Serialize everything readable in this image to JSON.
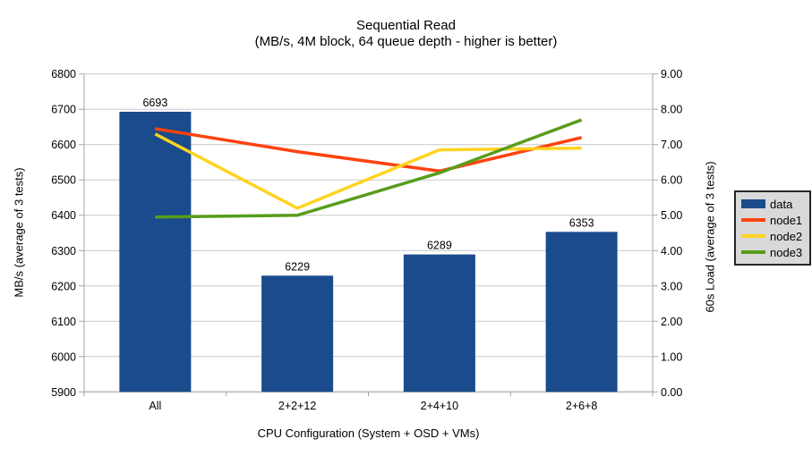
{
  "title": "Sequential Read",
  "subtitle": "(MB/s, 4M block, 64 queue depth - higher is better)",
  "chart_data": {
    "type": "bar+line",
    "categories": [
      "All",
      "2+2+12",
      "2+4+10",
      "2+6+8"
    ],
    "bar_series": {
      "name": "data",
      "axis": "left",
      "values": [
        6693,
        6229,
        6289,
        6353
      ],
      "data_labels": [
        "6693",
        "6229",
        "6289",
        "6353"
      ]
    },
    "line_series": [
      {
        "name": "node1",
        "axis": "right",
        "values": [
          7.45,
          6.8,
          6.25,
          7.2
        ]
      },
      {
        "name": "node2",
        "axis": "right",
        "values": [
          7.3,
          5.2,
          6.85,
          6.9
        ]
      },
      {
        "name": "node3",
        "axis": "right",
        "values": [
          4.95,
          5.0,
          6.2,
          7.7
        ]
      }
    ],
    "left_axis": {
      "label": "MB/s (average of 3 tests)",
      "min": 5900,
      "max": 6800,
      "step": 100,
      "ticks": [
        "5900",
        "6000",
        "6100",
        "6200",
        "6300",
        "6400",
        "6500",
        "6600",
        "6700",
        "6800"
      ]
    },
    "right_axis": {
      "label": "60s Load (average of 3 tests)",
      "min": 0,
      "max": 9,
      "step": 1,
      "ticks": [
        "0.00",
        "1.00",
        "2.00",
        "3.00",
        "4.00",
        "5.00",
        "6.00",
        "7.00",
        "8.00",
        "9.00"
      ]
    },
    "x_axis": {
      "label": "CPU Configuration (System + OSD + VMs)"
    },
    "grid": true,
    "colors": {
      "data": "#1A4B8C",
      "node1": "#FF420E",
      "node2": "#FFD320",
      "node3": "#579D1C",
      "gridline": "#c9c9c9",
      "axis": "#a6a6a6",
      "text": "#000000",
      "legend_bg": "#d9d9d9",
      "legend_border": "#262626"
    },
    "legend": {
      "position": "right",
      "items": [
        {
          "label": "data",
          "type": "bar",
          "color": "#1A4B8C"
        },
        {
          "label": "node1",
          "type": "line",
          "color": "#FF420E"
        },
        {
          "label": "node2",
          "type": "line",
          "color": "#FFD320"
        },
        {
          "label": "node3",
          "type": "line",
          "color": "#579D1C"
        }
      ]
    }
  }
}
